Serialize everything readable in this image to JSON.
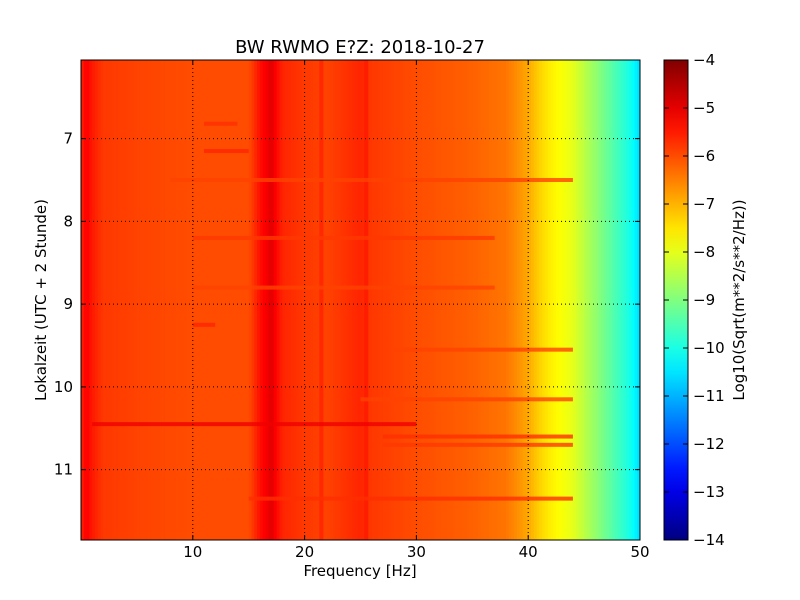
{
  "chart_data": {
    "type": "heatmap",
    "title": "BW RWMO E?Z: 2018-10-27",
    "xlabel": "Frequency [Hz]",
    "ylabel": "Lokalzeit (UTC + 2 Stunde)",
    "xlim": [
      0,
      50
    ],
    "ylim": [
      6.05,
      11.85
    ],
    "y_inverted": true,
    "x_ticks": [
      10,
      20,
      30,
      40,
      50
    ],
    "x_tick_labels": [
      "10",
      "20",
      "30",
      "40",
      "50"
    ],
    "y_ticks": [
      7,
      8,
      9,
      10,
      11
    ],
    "y_tick_labels": [
      "7",
      "8",
      "9",
      "10",
      "11"
    ],
    "grid": true,
    "colormap": "jet",
    "colorbar": {
      "label": "Log10(Sqrt(m**2/s**2/Hz))",
      "range": [
        -14,
        -4
      ],
      "ticks": [
        -4,
        -5,
        -6,
        -7,
        -8,
        -9,
        -10,
        -11,
        -12,
        -13,
        -14
      ],
      "tick_labels": [
        "−4",
        "−5",
        "−6",
        "−7",
        "−8",
        "−9",
        "−10",
        "−11",
        "−12",
        "−13",
        "−14"
      ]
    },
    "spectral_profile": {
      "frequency_hz": [
        0,
        0.5,
        1,
        2,
        5,
        10,
        15,
        16,
        17,
        18,
        20,
        22,
        25,
        26,
        30,
        35,
        38,
        40,
        41,
        42,
        43,
        44,
        45,
        46,
        47,
        48,
        49,
        50
      ],
      "level": [
        -5.6,
        -5.2,
        -5.5,
        -5.8,
        -5.9,
        -6.0,
        -6.0,
        -5.4,
        -5.0,
        -5.6,
        -5.8,
        -5.9,
        -5.6,
        -5.8,
        -6.0,
        -6.2,
        -6.4,
        -6.9,
        -7.3,
        -7.6,
        -7.8,
        -8.0,
        -8.4,
        -8.8,
        -9.2,
        -9.6,
        -10.0,
        -10.6
      ]
    },
    "features": [
      {
        "frequency_hz": 17,
        "level": -5.0
      },
      {
        "frequency_hz": 21.5,
        "level": -5.6
      },
      {
        "frequency_hz": 25.5,
        "level": -5.5
      }
    ],
    "events": [
      {
        "time": 10.45,
        "freq_range": [
          1,
          30
        ],
        "level": -5.1
      },
      {
        "time": 10.6,
        "freq_range": [
          27,
          44
        ],
        "level": -5.7
      },
      {
        "time": 10.7,
        "freq_range": [
          27,
          44
        ],
        "level": -5.8
      },
      {
        "time": 11.35,
        "freq_range": [
          15,
          44
        ],
        "level": -5.7
      },
      {
        "time": 7.15,
        "freq_range": [
          11,
          15
        ],
        "level": -5.6
      },
      {
        "time": 9.25,
        "freq_range": [
          10,
          12
        ],
        "level": -5.6
      },
      {
        "time": 6.82,
        "freq_range": [
          11,
          14
        ],
        "level": -5.7
      },
      {
        "time": 7.5,
        "freq_range": [
          8,
          44
        ],
        "level": -5.9
      },
      {
        "time": 8.2,
        "freq_range": [
          10,
          37
        ],
        "level": -5.8
      },
      {
        "time": 8.8,
        "freq_range": [
          10,
          37
        ],
        "level": -5.9
      },
      {
        "time": 9.55,
        "freq_range": [
          28,
          44
        ],
        "level": -5.9
      },
      {
        "time": 10.15,
        "freq_range": [
          25,
          44
        ],
        "level": -5.9
      }
    ]
  }
}
